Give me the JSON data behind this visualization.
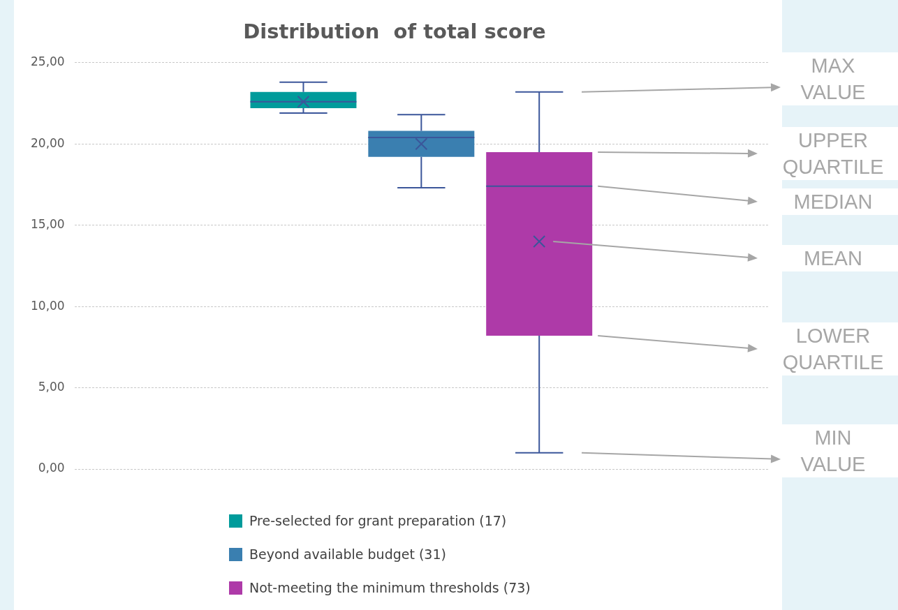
{
  "chart_data": {
    "type": "box",
    "title": "Distribution  of total score",
    "categories": [
      null
    ],
    "series": [
      {
        "name": "Pre-selected for grant preparation (17)",
        "color": "#009b9b",
        "boxes": [
          {
            "low": 21.9,
            "q1": 22.2,
            "median": 22.6,
            "q3": 23.2,
            "high": 23.8,
            "mean": 22.6
          }
        ]
      },
      {
        "name": "Beyond available budget (31)",
        "color": "#3a7fb0",
        "boxes": [
          {
            "low": 17.3,
            "q1": 19.2,
            "median": 20.4,
            "q3": 20.8,
            "high": 21.8,
            "mean": 20.0
          }
        ]
      },
      {
        "name": "Not-meeting the minimum thresholds (73)",
        "color": "#ae3aa8",
        "boxes": [
          {
            "low": 1.0,
            "q1": 8.2,
            "median": 17.4,
            "q3": 19.5,
            "high": 23.2,
            "mean": 14.0
          }
        ]
      }
    ],
    "ylim": [
      0,
      25
    ],
    "yticks": [
      {
        "value": 0,
        "label": "0,00"
      },
      {
        "value": 5,
        "label": "5,00"
      },
      {
        "value": 10,
        "label": "10,00"
      },
      {
        "value": 15,
        "label": "15,00"
      },
      {
        "value": 20,
        "label": "20,00"
      },
      {
        "value": 25,
        "label": "25,00"
      }
    ],
    "grid": "y",
    "legend": "bottom",
    "tick_labels": "y",
    "annotations": [
      "MAX VALUE",
      "UPPER QUARTILE",
      "MEDIAN",
      "MEAN",
      "LOWER QUARTILE",
      "MIN VALUE"
    ]
  }
}
